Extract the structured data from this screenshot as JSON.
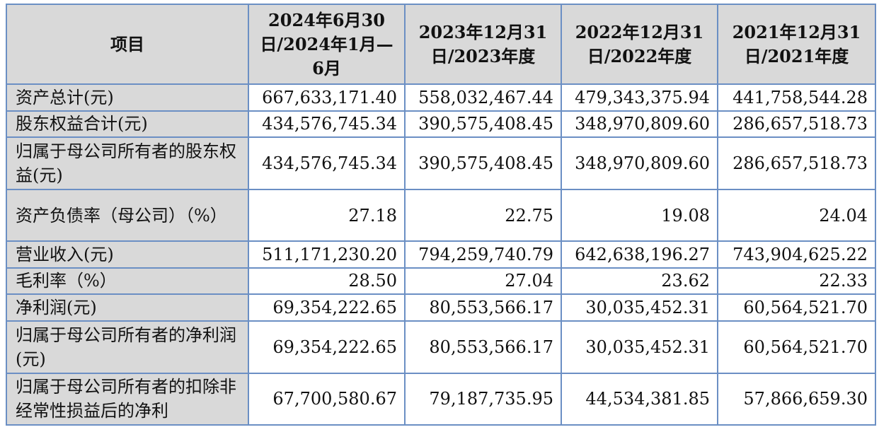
{
  "header": {
    "item": "项目",
    "col1": "2024年6月30日/2024年1月—6月",
    "col2": "2023年12月31日/2023年度",
    "col3": "2022年12月31日/2022年度",
    "col4": "2021年12月31日/2021年度"
  },
  "rows": [
    {
      "label": "资产总计(元)",
      "v1": "667,633,171.40",
      "v2": "558,032,467.44",
      "v3": "479,343,375.94",
      "v4": "441,758,544.28"
    },
    {
      "label": "股东权益合计(元)",
      "v1": "434,576,745.34",
      "v2": "390,575,408.45",
      "v3": "348,970,809.60",
      "v4": "286,657,518.73"
    },
    {
      "label": "归属于母公司所有者的股东权益(元)",
      "v1": "434,576,745.34",
      "v2": "390,575,408.45",
      "v3": "348,970,809.60",
      "v4": "286,657,518.73"
    },
    {
      "label": "资产负债率（母公司）（%）",
      "v1": "27.18",
      "v2": "22.75",
      "v3": "19.08",
      "v4": "24.04"
    },
    {
      "label": "营业收入(元)",
      "v1": "511,171,230.20",
      "v2": "794,259,740.79",
      "v3": "642,638,196.27",
      "v4": "743,904,625.22"
    },
    {
      "label": "毛利率（%）",
      "v1": "28.50",
      "v2": "27.04",
      "v3": "23.62",
      "v4": "22.33"
    },
    {
      "label": "净利润(元)",
      "v1": "69,354,222.65",
      "v2": "80,553,566.17",
      "v3": "30,035,452.31",
      "v4": "60,564,521.70"
    },
    {
      "label": "归属于母公司所有者的净利润(元)",
      "v1": "69,354,222.65",
      "v2": "80,553,566.17",
      "v3": "30,035,452.31",
      "v4": "60,564,521.70"
    },
    {
      "label": "归属于母公司所有者的扣除非经常性损益后的净利",
      "v1": "67,700,580.67",
      "v2": "79,187,735.95",
      "v3": "44,534,381.85",
      "v4": "57,866,659.30"
    }
  ]
}
